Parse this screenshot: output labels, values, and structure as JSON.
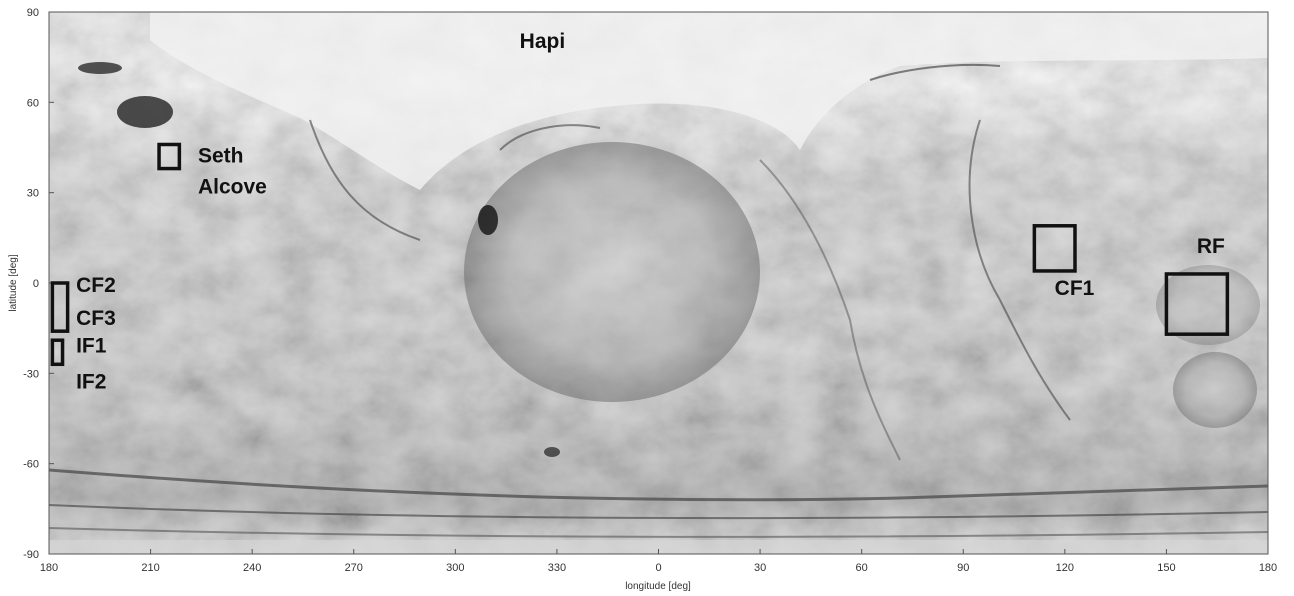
{
  "chart_data": {
    "type": "map",
    "projection": "equirectangular",
    "xlabel": "longitude [deg]",
    "ylabel": "latitude [deg]",
    "x_ticks": [
      "180",
      "210",
      "240",
      "270",
      "300",
      "330",
      "0",
      "30",
      "60",
      "90",
      "120",
      "150",
      "180"
    ],
    "y_ticks": [
      "90",
      "60",
      "30",
      "0",
      "-30",
      "-60",
      "-90"
    ],
    "x_range_unwrapped": [
      -180,
      180
    ],
    "y_range": [
      -90,
      90
    ],
    "basemap": "grayscale shaded surface relief",
    "labels": [
      {
        "name": "hapi",
        "lines": [
          "Hapi"
        ],
        "lon": -41,
        "lat": 78
      },
      {
        "name": "seth-alcove",
        "lines": [
          "Seth",
          "Alcove"
        ],
        "lon": -136,
        "lat": 40
      },
      {
        "name": "cf2",
        "lines": [
          "CF2"
        ],
        "lon": -172,
        "lat": -3
      },
      {
        "name": "cf3",
        "lines": [
          "CF3"
        ],
        "lon": -172,
        "lat": -14
      },
      {
        "name": "if1",
        "lines": [
          "IF1"
        ],
        "lon": -172,
        "lat": -23
      },
      {
        "name": "if2",
        "lines": [
          "IF2"
        ],
        "lon": -172,
        "lat": -35
      },
      {
        "name": "cf1",
        "lines": [
          "CF1"
        ],
        "lon": 117,
        "lat": -4
      },
      {
        "name": "rf",
        "lines": [
          "RF"
        ],
        "lon": 159,
        "lat": 10
      }
    ],
    "regions": [
      {
        "name": "seth-alcove",
        "lon": [
          -147.5,
          -141.5
        ],
        "lat": [
          38,
          46
        ]
      },
      {
        "name": "cf2-cf3",
        "lon": [
          -179,
          -174.5
        ],
        "lat": [
          -16,
          0
        ]
      },
      {
        "name": "if1",
        "lon": [
          -179,
          -176
        ],
        "lat": [
          -27,
          -19
        ]
      },
      {
        "name": "cf1",
        "lon": [
          111,
          123
        ],
        "lat": [
          4,
          19
        ]
      },
      {
        "name": "rf",
        "lon": [
          150,
          168
        ],
        "lat": [
          -17,
          3
        ]
      }
    ]
  }
}
